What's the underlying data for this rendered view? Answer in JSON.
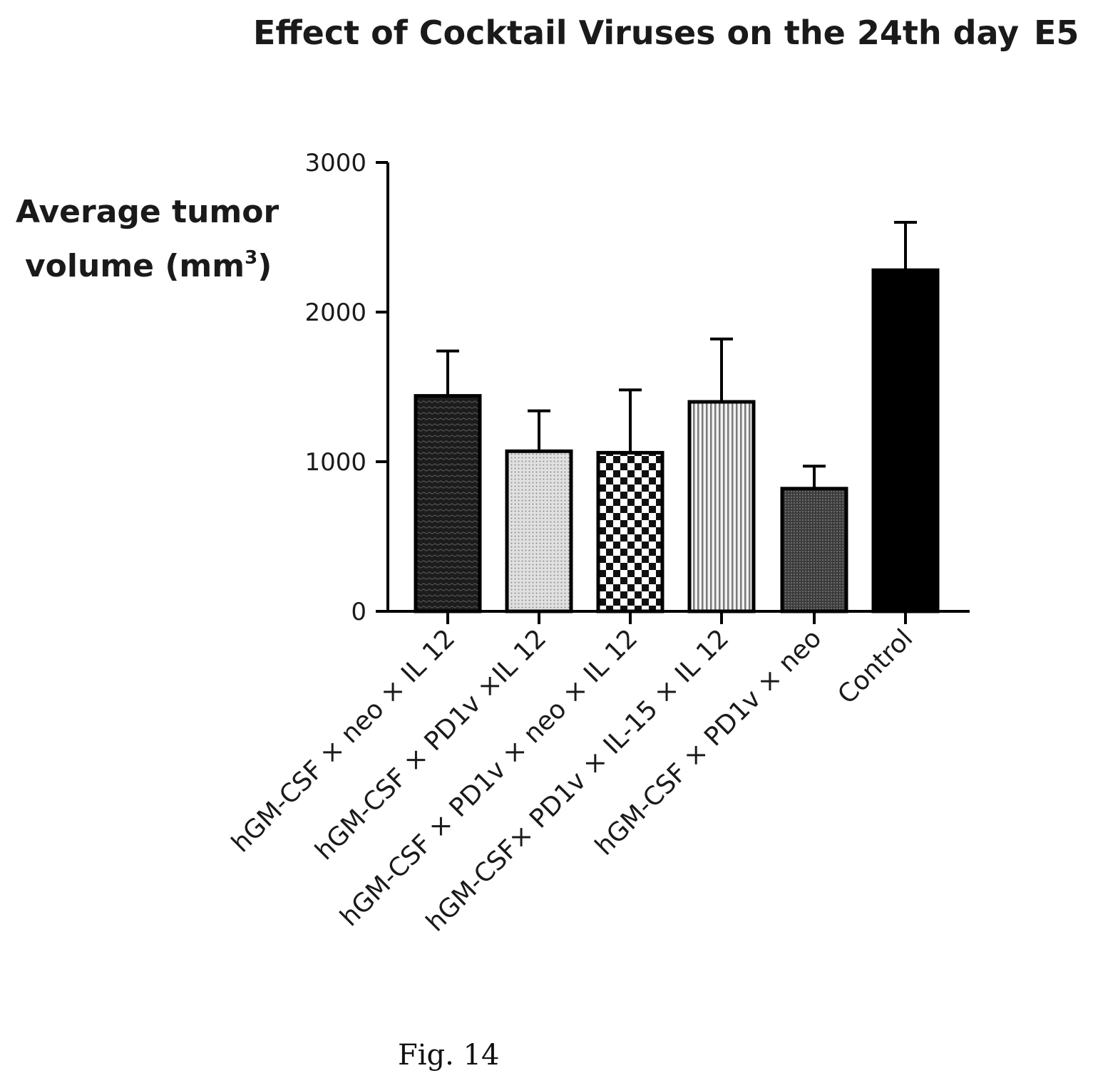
{
  "figure_caption": "Fig. 14",
  "chart_data": {
    "type": "bar",
    "title": "Effect of Cocktail Viruses on the 24th day",
    "panel_label": "E5",
    "ylabel_line1": "Average tumor",
    "ylabel_line2": "volume (mm",
    "ylabel_superscript": "3",
    "ylabel_close": ")",
    "ylim": [
      0,
      3000
    ],
    "yticks": [
      "0",
      "1000",
      "2000",
      "3000"
    ],
    "grid": false,
    "legend": "none",
    "categories": [
      "hGM-CSF × neo × IL 12",
      "hGM-CSF × PD1v ×IL 12",
      "hGM-CSF  × PD1v × neo × IL  12",
      "hGM-CSF× PD1v × IL-15 × IL 12",
      "hGM-CSF × PD1v × neo",
      "Control"
    ],
    "values": [
      1440,
      1070,
      1060,
      1400,
      820,
      2280
    ],
    "error_upper": [
      1740,
      1340,
      1480,
      1820,
      970,
      2600
    ],
    "fills": [
      "wave-dark",
      "dots-light",
      "checker",
      "vstripes",
      "dots-dark",
      "solid-black"
    ]
  }
}
